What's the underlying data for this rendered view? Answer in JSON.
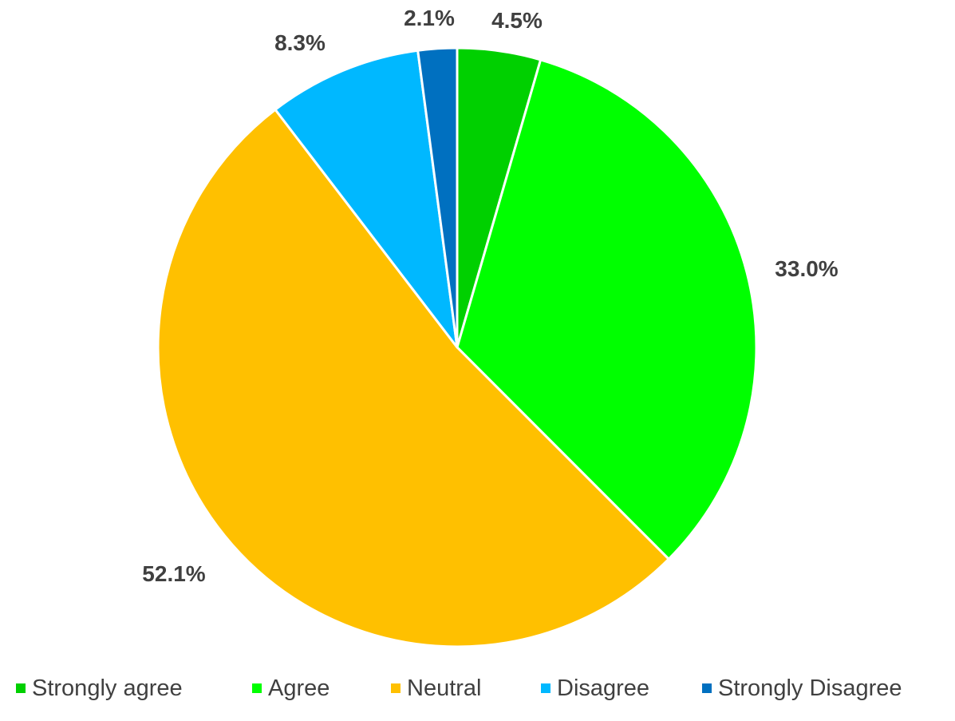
{
  "chart_data": {
    "type": "pie",
    "categories": [
      "Strongly agree",
      "Agree",
      "Neutral",
      "Disagree",
      "Strongly Disagree"
    ],
    "values": [
      4.5,
      33.0,
      52.1,
      8.3,
      2.1
    ],
    "data_labels": [
      "4.5%",
      "33.0%",
      "52.1%",
      "8.3%",
      "2.1%"
    ],
    "colors": [
      "#00d000",
      "#00ff00",
      "#ffc000",
      "#00b8ff",
      "#0070c0"
    ],
    "legend": {
      "position": "bottom",
      "entries": [
        "Strongly agree",
        "Agree",
        "Neutral",
        "Disagree",
        "Strongly Disagree"
      ]
    }
  }
}
